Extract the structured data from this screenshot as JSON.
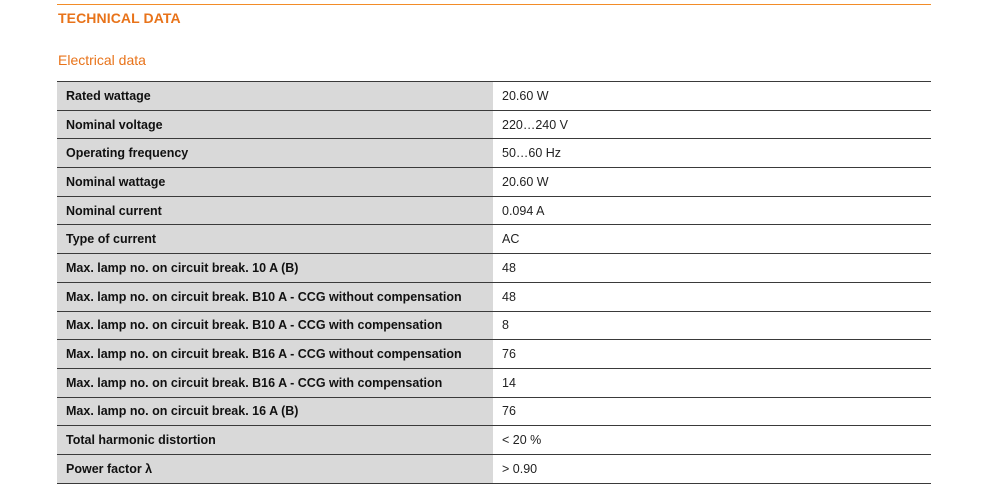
{
  "header": {
    "section_title": "TECHNICAL DATA",
    "subsection_title": "Electrical data"
  },
  "colors": {
    "accent": "#e8731a",
    "rule": "#f28c28",
    "label_bg": "#d9d9d9"
  },
  "rows": [
    {
      "label": "Rated wattage",
      "value": "20.60 W"
    },
    {
      "label": "Nominal voltage",
      "value": "220…240 V"
    },
    {
      "label": "Operating frequency",
      "value": "50…60 Hz"
    },
    {
      "label": "Nominal wattage",
      "value": "20.60 W"
    },
    {
      "label": "Nominal current",
      "value": "0.094 A"
    },
    {
      "label": "Type of current",
      "value": "AC"
    },
    {
      "label": "Max. lamp no. on circuit break. 10 A (B)",
      "value": "48"
    },
    {
      "label": "Max. lamp no. on circuit break. B10 A - CCG without compensation",
      "value": "48"
    },
    {
      "label": "Max. lamp no. on circuit break. B10 A - CCG with compensation",
      "value": "8"
    },
    {
      "label": "Max. lamp no. on circuit break. B16 A - CCG without compensation",
      "value": "76"
    },
    {
      "label": "Max. lamp no. on circuit break. B16 A - CCG with compensation",
      "value": "14"
    },
    {
      "label": "Max. lamp no. on circuit break. 16 A (B)",
      "value": "76"
    },
    {
      "label": "Total harmonic distortion",
      "value": "< 20 %"
    },
    {
      "label": "Power factor λ",
      "value": "> 0.90"
    }
  ]
}
